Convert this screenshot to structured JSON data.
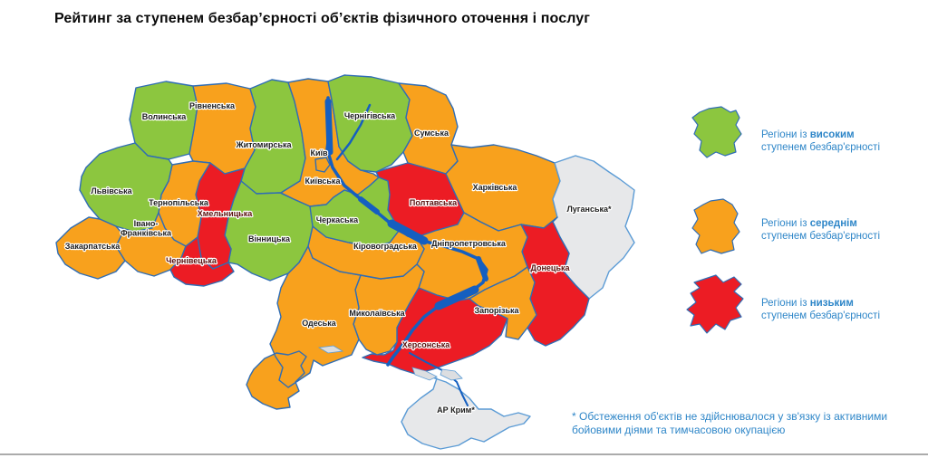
{
  "title": "Рейтинг за ступенем безбар’єрності об’єктів фізичного оточення і послуг",
  "legend": {
    "items": [
      {
        "status": "high",
        "prefix": "Регіони із",
        "bold": "високим",
        "line2": "ступенем безбар'єрності"
      },
      {
        "status": "medium",
        "prefix": "Регіони із",
        "bold": "середнім",
        "line2": "ступенем безбар'єрності"
      },
      {
        "status": "low",
        "prefix": "Регіони із",
        "bold": "низьким",
        "line2": "ступенем безбар'єрності"
      }
    ]
  },
  "footnote": {
    "line1": "* Обстеження об'єктів не здійснювалося у зв'язку із активними",
    "line2": "бойовими діями та тимчасовою окупацією"
  },
  "colors": {
    "high": "#8CC63F",
    "medium": "#F8A11D",
    "low": "#EC1C24",
    "not_surveyed": "#E7E8EA",
    "border": "#2F6DB5",
    "border_muted": "#5B9BD5",
    "water": "#155FC0",
    "sea_marsh": "#DCDEE1",
    "legend_text": "#2E86C8",
    "label": "#1C1C1C",
    "label_low": "#5A100E",
    "divider": "#ABABAB"
  },
  "regions": [
    {
      "id": "volyn",
      "name": "Волинська",
      "status": "high"
    },
    {
      "id": "rivne",
      "name": "Рівненська",
      "status": "medium"
    },
    {
      "id": "zhytomyr",
      "name": "Житомирська",
      "status": "high"
    },
    {
      "id": "kyivska",
      "name": "Київська",
      "status": "medium"
    },
    {
      "id": "chernihiv",
      "name": "Чернігівська",
      "status": "high"
    },
    {
      "id": "sumy",
      "name": "Сумська",
      "status": "medium"
    },
    {
      "id": "poltava",
      "name": "Полтавська",
      "status": "low"
    },
    {
      "id": "kharkiv",
      "name": "Харківська",
      "status": "medium"
    },
    {
      "id": "luhansk",
      "name": "Луганська*",
      "status": "not_surveyed"
    },
    {
      "id": "donetsk",
      "name": "Донецька",
      "status": "low"
    },
    {
      "id": "dnipro",
      "name": "Дніпропетровська",
      "status": "medium"
    },
    {
      "id": "zaporizhzhia",
      "name": "Запорізька",
      "status": "medium"
    },
    {
      "id": "kherson",
      "name": "Херсонська",
      "status": "low"
    },
    {
      "id": "mykolaiv",
      "name": "Миколаївська",
      "status": "medium"
    },
    {
      "id": "odesa",
      "name": "Одеська",
      "status": "medium"
    },
    {
      "id": "kirovohrad",
      "name": "Кіровоградська",
      "status": "medium"
    },
    {
      "id": "cherkasy",
      "name": "Черкаська",
      "status": "high"
    },
    {
      "id": "vinnytsia",
      "name": "Вінницька",
      "status": "high"
    },
    {
      "id": "khmelnytskyi",
      "name": "Хмельницька",
      "status": "low"
    },
    {
      "id": "ternopil",
      "name": "Тернопільська",
      "status": "medium"
    },
    {
      "id": "lviv",
      "name": "Львівська",
      "status": "high"
    },
    {
      "id": "zakarpattia",
      "name": "Закарпатська",
      "status": "medium"
    },
    {
      "id": "ivano",
      "name": "Івано-\nФранківська",
      "status": "medium"
    },
    {
      "id": "chernivtsi",
      "name": "Чернівецька",
      "status": "low"
    },
    {
      "id": "crimea",
      "name": "АР Крим*",
      "status": "not_surveyed"
    },
    {
      "id": "kyiv_city",
      "name": "Київ",
      "status": "medium"
    }
  ]
}
